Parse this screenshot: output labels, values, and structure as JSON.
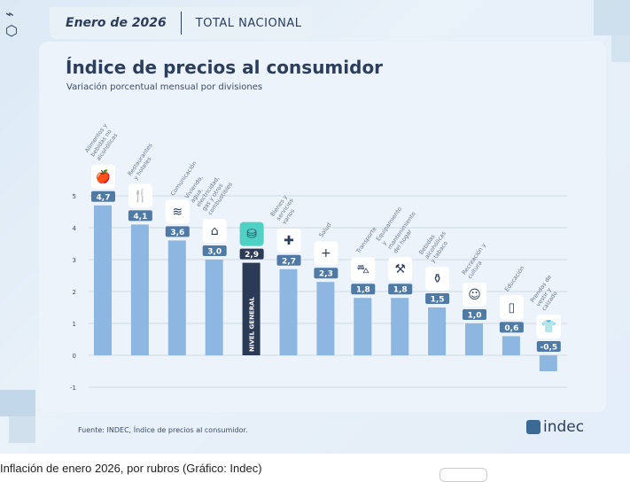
{
  "header": {
    "date": "Enero de 2026",
    "scope": "TOTAL NACIONAL"
  },
  "footer": {
    "source": "Fuente: INDEC, Índice de precios al consumidor.",
    "brand": "indec"
  },
  "caption": "Inflación de enero 2026, por rubros (Gráfico: Indec)",
  "chart_data": {
    "type": "bar",
    "title": "Índice de precios al consumidor",
    "subtitle": "Variación porcentual mensual por divisiones",
    "categories": [
      "Alimentos y bebidas no alcohólicas",
      "Restaurantes y hoteles",
      "Comunicación",
      "Vivienda, agua, electricidad, gas y otros combustibles",
      "NIVEL GENERAL",
      "Bienes y servicios varios",
      "Salud",
      "Transporte",
      "Equipamiento y mantenimiento del hogar",
      "Bebidas alcohólicas y tabaco",
      "Recreación y cultura",
      "Educación",
      "Prendas de vestir y calzado"
    ],
    "values": [
      4.7,
      4.1,
      3.6,
      3.0,
      2.9,
      2.7,
      2.3,
      1.8,
      1.8,
      1.5,
      1.0,
      0.6,
      -0.5
    ],
    "value_labels": [
      "4,7",
      "4,1",
      "3,6",
      "3,0",
      "2,9",
      "2,7",
      "2,3",
      "1,8",
      "1,8",
      "1,5",
      "1,0",
      "0,6",
      "-0,5"
    ],
    "icons": [
      "food-basket-icon",
      "restaurant-icon",
      "wifi-icon",
      "house-energy-icon",
      "shopping-basket-icon",
      "cosmetics-icon",
      "health-cross-icon",
      "car-icon",
      "tools-icon",
      "bottle-icon",
      "theater-masks-icon",
      "book-icon",
      "shirt-icon"
    ],
    "highlight_index": 4,
    "yticks": [
      5,
      4,
      3,
      2,
      1,
      0,
      -1
    ],
    "ylim": [
      -1,
      5
    ],
    "grid": true,
    "colors": {
      "bar": "#8db6e0",
      "highlight": "#2b3a55",
      "badge": "#4f7aa6",
      "highlight_icon": "#4fd1c5",
      "text": "#2c3e5c"
    }
  }
}
